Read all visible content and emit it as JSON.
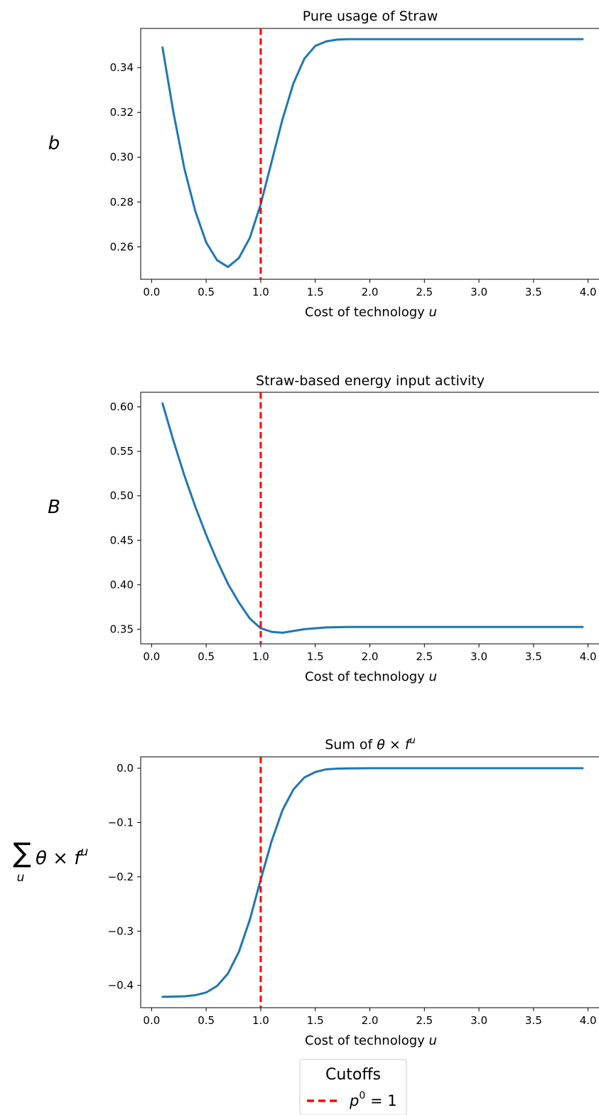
{
  "chart_data": [
    {
      "type": "line",
      "title": "Pure usage of Straw",
      "xlabel_text": "Cost of technology ",
      "xlabel_var": "u",
      "ylabel": "b",
      "xlim": [
        -0.1,
        4.1
      ],
      "ylim": [
        0.2455,
        0.3575
      ],
      "xticks": [
        0.0,
        0.5,
        1.0,
        1.5,
        2.0,
        2.5,
        3.0,
        3.5,
        4.0
      ],
      "xtick_labels": [
        "0.0",
        "0.5",
        "1.0",
        "1.5",
        "2.0",
        "2.5",
        "3.0",
        "3.5",
        "4.0"
      ],
      "yticks": [
        0.26,
        0.28,
        0.3,
        0.32,
        0.34
      ],
      "ytick_labels": [
        "0.26",
        "0.28",
        "0.30",
        "0.32",
        "0.34"
      ],
      "series": [
        {
          "color": "#1f77b4",
          "points": [
            [
              0.1,
              0.349
            ],
            [
              0.2,
              0.32
            ],
            [
              0.3,
              0.295
            ],
            [
              0.4,
              0.276
            ],
            [
              0.5,
              0.262
            ],
            [
              0.6,
              0.254
            ],
            [
              0.7,
              0.251
            ],
            [
              0.8,
              0.255
            ],
            [
              0.9,
              0.264
            ],
            [
              1.0,
              0.279
            ],
            [
              1.1,
              0.298
            ],
            [
              1.2,
              0.317
            ],
            [
              1.3,
              0.333
            ],
            [
              1.4,
              0.344
            ],
            [
              1.5,
              0.3497
            ],
            [
              1.6,
              0.3517
            ],
            [
              1.7,
              0.3525
            ],
            [
              1.8,
              0.3527
            ],
            [
              2.0,
              0.3527
            ],
            [
              2.5,
              0.3527
            ],
            [
              3.0,
              0.3527
            ],
            [
              3.5,
              0.3527
            ],
            [
              3.95,
              0.3527
            ]
          ]
        }
      ],
      "cutoff_x": 1.0
    },
    {
      "type": "line",
      "title": "Straw-based energy input activity",
      "xlabel_text": "Cost of technology ",
      "xlabel_var": "u",
      "ylabel": "B",
      "xlim": [
        -0.1,
        4.1
      ],
      "ylim": [
        0.3335,
        0.6165
      ],
      "xticks": [
        0.0,
        0.5,
        1.0,
        1.5,
        2.0,
        2.5,
        3.0,
        3.5,
        4.0
      ],
      "xtick_labels": [
        "0.0",
        "0.5",
        "1.0",
        "1.5",
        "2.0",
        "2.5",
        "3.0",
        "3.5",
        "4.0"
      ],
      "yticks": [
        0.35,
        0.4,
        0.45,
        0.5,
        0.55,
        0.6
      ],
      "ytick_labels": [
        "0.35",
        "0.40",
        "0.45",
        "0.50",
        "0.55",
        "0.60"
      ],
      "series": [
        {
          "color": "#1f77b4",
          "points": [
            [
              0.1,
              0.604
            ],
            [
              0.2,
              0.562
            ],
            [
              0.3,
              0.523
            ],
            [
              0.4,
              0.488
            ],
            [
              0.5,
              0.456
            ],
            [
              0.6,
              0.427
            ],
            [
              0.7,
              0.401
            ],
            [
              0.8,
              0.38
            ],
            [
              0.9,
              0.362
            ],
            [
              1.0,
              0.351
            ],
            [
              1.1,
              0.347
            ],
            [
              1.2,
              0.346
            ],
            [
              1.3,
              0.348
            ],
            [
              1.4,
              0.35
            ],
            [
              1.5,
              0.351
            ],
            [
              1.6,
              0.352
            ],
            [
              1.8,
              0.3525
            ],
            [
              2.0,
              0.3525
            ],
            [
              3.0,
              0.3525
            ],
            [
              3.95,
              0.3525
            ]
          ]
        }
      ],
      "cutoff_x": 1.0
    },
    {
      "type": "line",
      "title_text": "Sum of ",
      "xlabel_text": "Cost of technology ",
      "xlabel_var": "u",
      "xlim": [
        -0.1,
        4.1
      ],
      "ylim": [
        -0.441,
        0.021
      ],
      "xticks": [
        0.0,
        0.5,
        1.0,
        1.5,
        2.0,
        2.5,
        3.0,
        3.5,
        4.0
      ],
      "xtick_labels": [
        "0.0",
        "0.5",
        "1.0",
        "1.5",
        "2.0",
        "2.5",
        "3.0",
        "3.5",
        "4.0"
      ],
      "yticks": [
        0.0,
        -0.1,
        -0.2,
        -0.3,
        -0.4
      ],
      "ytick_labels": [
        "0.0",
        "−0.1",
        "−0.2",
        "−0.3",
        "−0.4"
      ],
      "series": [
        {
          "color": "#1f77b4",
          "points": [
            [
              0.1,
              -0.421
            ],
            [
              0.2,
              -0.4205
            ],
            [
              0.3,
              -0.42
            ],
            [
              0.4,
              -0.418
            ],
            [
              0.5,
              -0.413
            ],
            [
              0.6,
              -0.401
            ],
            [
              0.7,
              -0.378
            ],
            [
              0.8,
              -0.338
            ],
            [
              0.9,
              -0.279
            ],
            [
              1.0,
              -0.205
            ],
            [
              1.1,
              -0.134
            ],
            [
              1.2,
              -0.077
            ],
            [
              1.3,
              -0.039
            ],
            [
              1.4,
              -0.017
            ],
            [
              1.5,
              -0.007
            ],
            [
              1.6,
              -0.002
            ],
            [
              1.7,
              -0.0008
            ],
            [
              1.8,
              -0.0003
            ],
            [
              2.0,
              0.0
            ],
            [
              3.0,
              0.0
            ],
            [
              3.95,
              0.0
            ]
          ]
        }
      ],
      "cutoff_x": 1.0
    }
  ],
  "legend": {
    "title": "Cutoffs",
    "label_var": "p",
    "label_sup": "0",
    "label_rest": " = 1",
    "line_color": "#ff0000"
  }
}
